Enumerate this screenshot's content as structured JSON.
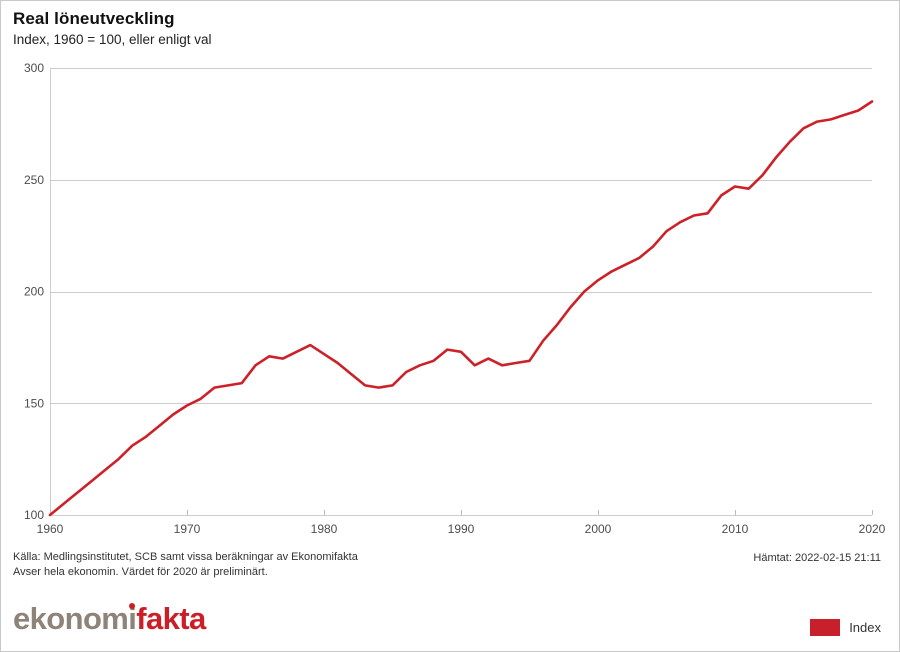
{
  "header": {
    "title": "Real löneutveckling",
    "subtitle": "Index, 1960 = 100, eller enligt val"
  },
  "chart_data": {
    "type": "line",
    "title": "Real löneutveckling",
    "subtitle": "Index, 1960 = 100, eller enligt val",
    "xlabel": "",
    "ylabel": "",
    "xlim": [
      1960,
      2020
    ],
    "ylim": [
      100,
      300
    ],
    "x_ticks": [
      1960,
      1970,
      1980,
      1990,
      2000,
      2010,
      2020
    ],
    "y_ticks": [
      100,
      150,
      200,
      250,
      300
    ],
    "grid": "horizontal",
    "legend_position": "bottom-right",
    "series": [
      {
        "name": "Index",
        "color": "#cc2128",
        "x_start": 1960,
        "x_step": 1,
        "values": [
          100,
          105,
          110,
          115,
          120,
          125,
          131,
          135,
          140,
          145,
          149,
          152,
          157,
          158,
          159,
          167,
          171,
          170,
          173,
          176,
          172,
          168,
          163,
          158,
          157,
          158,
          164,
          167,
          169,
          174,
          173,
          167,
          170,
          167,
          168,
          169,
          178,
          185,
          193,
          200,
          205,
          209,
          212,
          215,
          220,
          227,
          231,
          234,
          235,
          243,
          247,
          246,
          252,
          260,
          267,
          273,
          276,
          277,
          279,
          281,
          285
        ]
      }
    ]
  },
  "footer": {
    "source_line1": "Källa: Medlingsinstitutet, SCB samt vissa beräkningar av Ekonomifakta",
    "source_line2": "Avser hela ekonomin. Värdet för 2020 är preliminärt.",
    "fetched": "Hämtat: 2022-02-15 21:11"
  },
  "legend": {
    "label": "Index",
    "color": "#c8202b"
  },
  "logo": {
    "part_ekonom": "ekonom",
    "part_i": "i",
    "part_fakta": "fakta"
  },
  "colors": {
    "line": "#cc2128",
    "gridline": "#cccccc",
    "tick_label": "#4d4d4d",
    "border": "#c9c9c9",
    "logo_gray": "#8d8378",
    "logo_red": "#cc1e26"
  }
}
